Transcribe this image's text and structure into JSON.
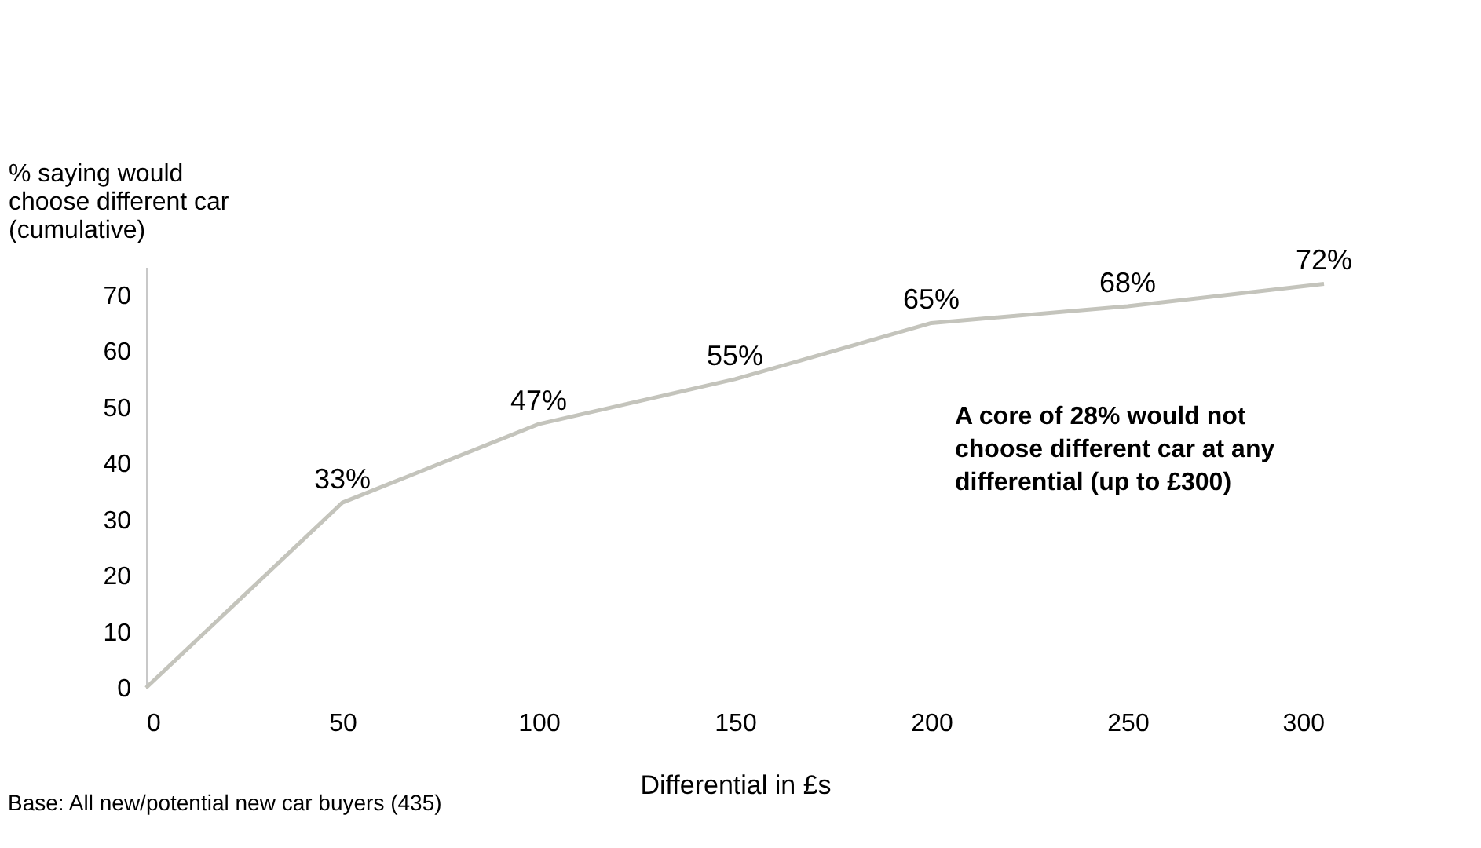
{
  "chart_data": {
    "type": "line",
    "ylabel": "% saying would\nchoose different car\n(cumulative)",
    "xlabel": "Differential in £s",
    "x": [
      0,
      50,
      100,
      150,
      200,
      250,
      300
    ],
    "series": [
      {
        "color": "#c4c4bc",
        "values": [
          0,
          33,
          47,
          55,
          65,
          68,
          72
        ],
        "value_labels": [
          null,
          "33%",
          "47%",
          "55%",
          "65%",
          "68%",
          "72%"
        ]
      }
    ],
    "xlim": [
      0,
      300
    ],
    "xticks": [
      0,
      50,
      100,
      150,
      200,
      250,
      300
    ],
    "ylim": [
      0,
      75
    ],
    "yticks": [
      0,
      10,
      20,
      30,
      40,
      50,
      60,
      70
    ],
    "grid": false,
    "marker": "none",
    "line_style": "solid",
    "annotations": [
      "A core of 28% would not\nchoose different car at any\ndifferential (up to £300)",
      "Base: All new/potential new car buyers (435)"
    ]
  }
}
